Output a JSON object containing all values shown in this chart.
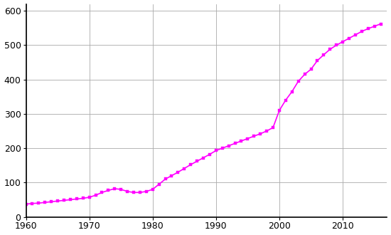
{
  "years": [
    1960,
    1961,
    1962,
    1963,
    1964,
    1965,
    1966,
    1967,
    1968,
    1969,
    1970,
    1971,
    1972,
    1973,
    1974,
    1975,
    1976,
    1977,
    1978,
    1979,
    1980,
    1981,
    1982,
    1983,
    1984,
    1985,
    1986,
    1987,
    1988,
    1989,
    1990,
    1991,
    1992,
    1993,
    1994,
    1995,
    1996,
    1997,
    1998,
    1999,
    2000,
    2001,
    2002,
    2003,
    2004,
    2005,
    2006,
    2007,
    2008,
    2009,
    2010,
    2011,
    2012,
    2013,
    2014,
    2015,
    2016
  ],
  "population": [
    37,
    39,
    40,
    42,
    44,
    46,
    48,
    50,
    52,
    54,
    57,
    63,
    71,
    77,
    82,
    80,
    74,
    71,
    71,
    74,
    80,
    95,
    110,
    120,
    130,
    141,
    152,
    162,
    172,
    182,
    193,
    200,
    207,
    214,
    221,
    228,
    235,
    242,
    250,
    260,
    310,
    340,
    365,
    395,
    415,
    430,
    455,
    472,
    488,
    500,
    510,
    520,
    530,
    540,
    548,
    555,
    562
  ],
  "line_color": "#FF00FF",
  "marker_color": "#FF00FF",
  "marker": "s",
  "marker_size": 3,
  "line_width": 1.2,
  "background_color": "#ffffff",
  "grid_color": "#aaaaaa",
  "xlim": [
    1960,
    2017
  ],
  "ylim": [
    0,
    620
  ],
  "yticks": [
    0,
    100,
    200,
    300,
    400,
    500,
    600
  ],
  "xticks": [
    1960,
    1970,
    1980,
    1990,
    2000,
    2010
  ]
}
